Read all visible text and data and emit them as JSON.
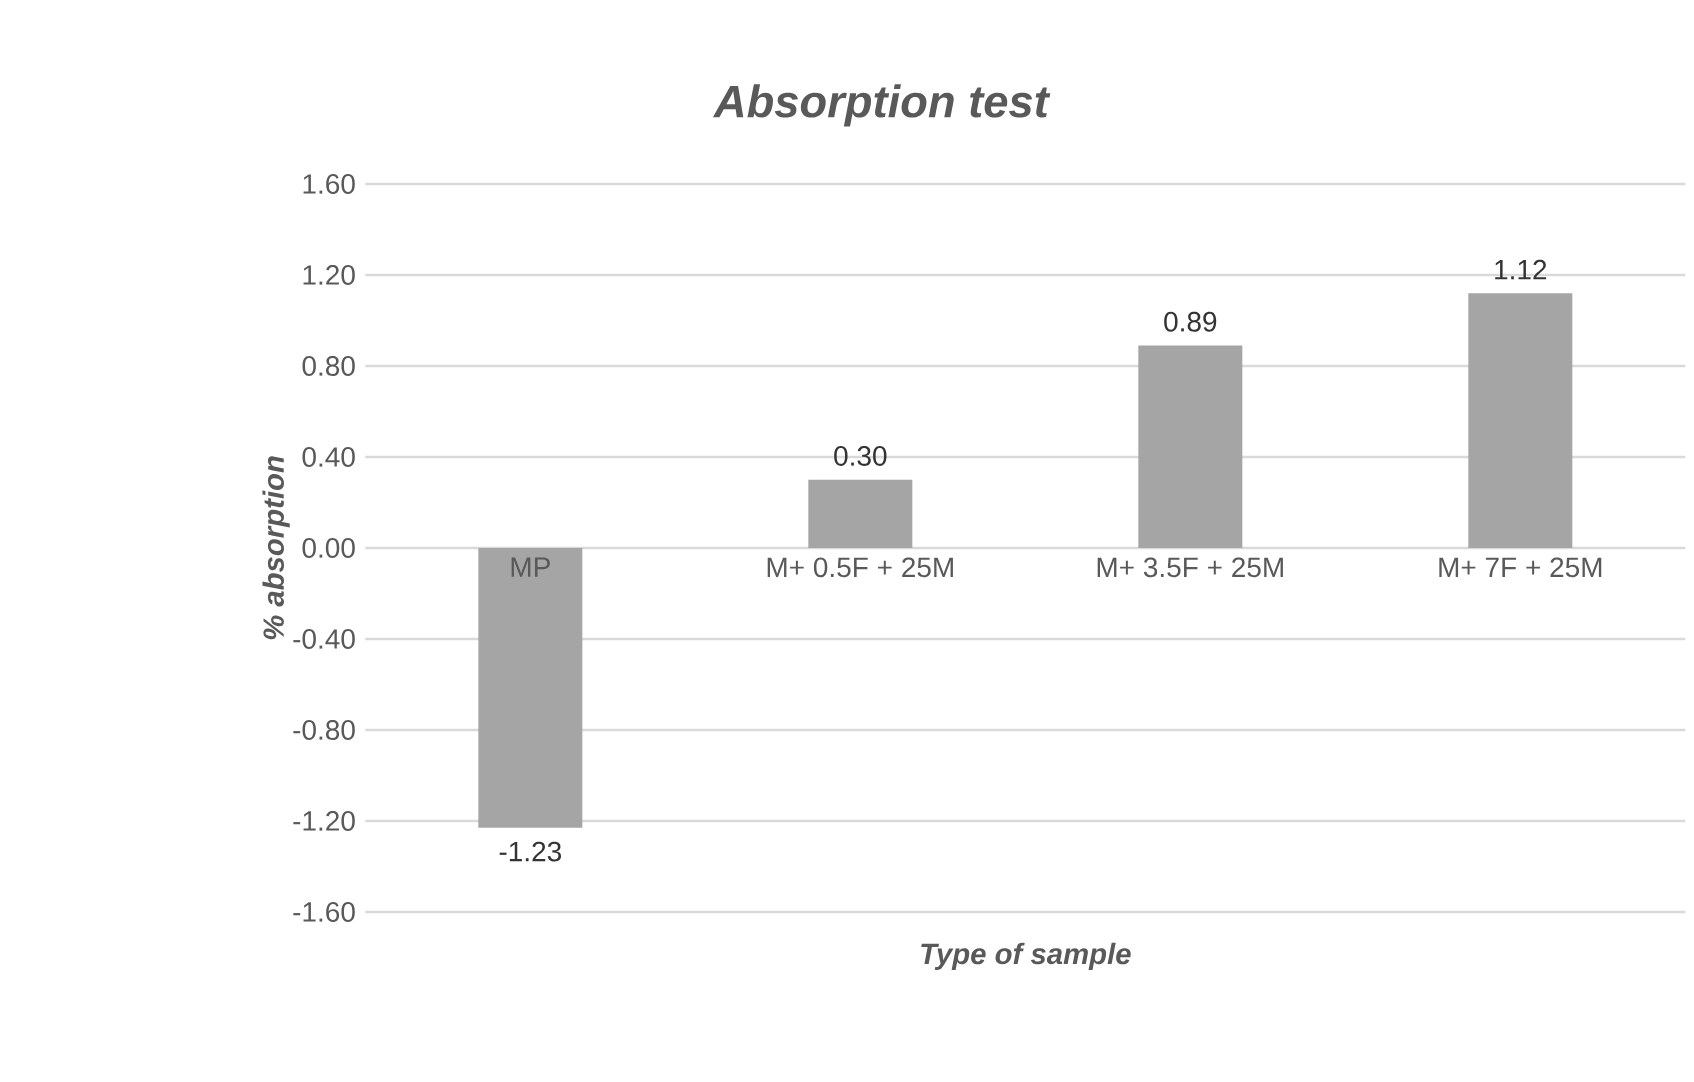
{
  "chart_data": {
    "type": "bar",
    "title": "Absorption test",
    "xlabel": "Type of sample",
    "ylabel": "% absorption",
    "categories": [
      "MP",
      "M+ 0.5F + 25M",
      "M+ 3.5F + 25M",
      "M+ 7F + 25M"
    ],
    "values": [
      -1.23,
      0.3,
      0.89,
      1.12
    ],
    "value_labels": [
      "-1.23",
      "0.30",
      "0.89",
      "1.12"
    ],
    "color": "#a5a5a5",
    "ylim": [
      -1.6,
      1.6
    ],
    "yticks": [
      {
        "value": -1.6,
        "label": "-1.60"
      },
      {
        "value": -1.2,
        "label": "-1.20"
      },
      {
        "value": -0.8,
        "label": "-0.80"
      },
      {
        "value": -0.4,
        "label": "-0.40"
      },
      {
        "value": 0,
        "label": "0.00"
      },
      {
        "value": 0.4,
        "label": "0.40"
      },
      {
        "value": 0.8,
        "label": "0.80"
      },
      {
        "value": 1.2,
        "label": "1.20"
      },
      {
        "value": 1.6,
        "label": "1.60"
      }
    ],
    "grid": "y"
  }
}
